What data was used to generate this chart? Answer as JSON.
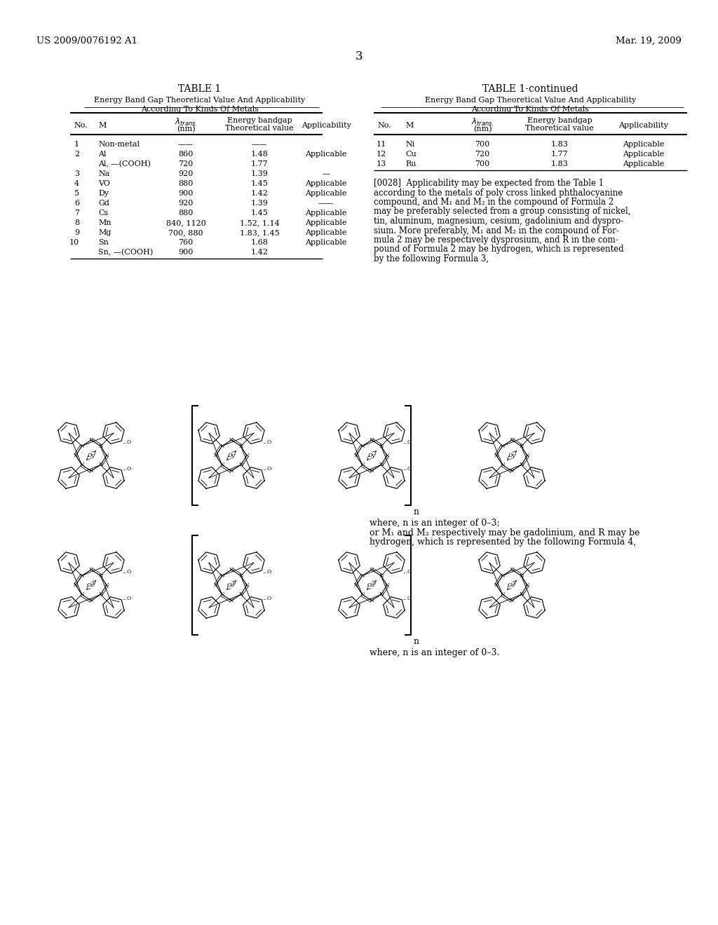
{
  "header_left": "US 2009/0076192 A1",
  "header_right": "Mar. 19, 2009",
  "page_number": "3",
  "table1_title": "TABLE 1",
  "table1_subtitle1": "Energy Band Gap Theoretical Value And Applicability",
  "table1_subtitle2": "According To Kinds Of Metals",
  "table2_title": "TABLE 1-continued",
  "table2_subtitle1": "Energy Band Gap Theoretical Value And Applicability",
  "table2_subtitle2": "According To Kinds Of Metals",
  "table1_rows": [
    [
      "1",
      "Non-metal",
      "——",
      "——",
      ""
    ],
    [
      "2",
      "Al",
      "860",
      "1.48",
      "Applicable"
    ],
    [
      "",
      "Al, —(COOH)",
      "720",
      "1.77",
      ""
    ],
    [
      "3",
      "Na",
      "920",
      "1.39",
      "—"
    ],
    [
      "4",
      "VO",
      "880",
      "1.45",
      "Applicable"
    ],
    [
      "5",
      "Dy",
      "900",
      "1.42",
      "Applicable"
    ],
    [
      "6",
      "Gd",
      "920",
      "1.39",
      "——"
    ],
    [
      "7",
      "Cs",
      "880",
      "1.45",
      "Applicable"
    ],
    [
      "8",
      "Mn",
      "840, 1120",
      "1.52, 1.14",
      "Applicable"
    ],
    [
      "9",
      "Mg",
      "700, 880",
      "1.83, 1.45",
      "Applicable"
    ],
    [
      "10",
      "Sn",
      "760",
      "1.68",
      "Applicable"
    ],
    [
      "",
      "Sn, —(COOH)",
      "900",
      "1.42",
      ""
    ]
  ],
  "table2_rows": [
    [
      "11",
      "Ni",
      "700",
      "1.83",
      "Applicable"
    ],
    [
      "12",
      "Cu",
      "720",
      "1.77",
      "Applicable"
    ],
    [
      "13",
      "Ru",
      "700",
      "1.83",
      "Applicable"
    ]
  ],
  "paragraph_text": "[0028]  Applicability may be expected from the Table 1 according to the metals of poly cross linked phthalocyanine compound, and M₁ and M₂ in the compound of Formula 2 may be preferably selected from a group consisting of nickel, tin, aluminum, magnesium, cesium, gadolinium and dyspro-sium. More preferably, M₁ and M₂ in the compound of For-mula 2 may be respectively dysprosium, and R in the com-pound of Formula 2 may be hydrogen, which is represented by the following Formula 3,",
  "formula3_caption1": "where, n is an integer of 0–3;",
  "formula3_caption2": "or M₁ and M₂ respectively may be gadolinium, and R may be",
  "formula3_caption3": "hydrogen, which is represented by the following Formula 4,",
  "formula4_caption": "where, n is an integer of 0–3.",
  "bg_color": "#ffffff"
}
